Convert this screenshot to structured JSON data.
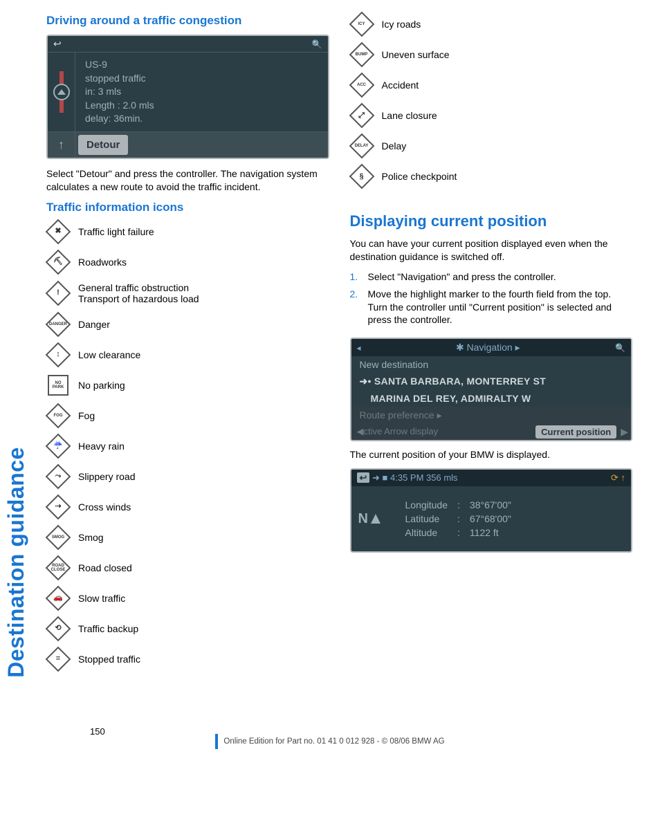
{
  "sideTab": "Destination guidance",
  "left": {
    "heading1": "Driving around a traffic congestion",
    "detour": {
      "road": "US-9",
      "status": "stopped traffic",
      "in": "in: 3 mls",
      "length": "Length : 2.0 mls",
      "delay": "delay: 36min.",
      "button": "Detour"
    },
    "detourText": "Select \"Detour\" and press the controller. The navigation system calculates a new route to avoid the traffic incident.",
    "heading2": "Traffic information icons",
    "icons": [
      {
        "glyph": "✖",
        "shape": "diamond",
        "label": "Traffic light failure"
      },
      {
        "glyph": "⛏",
        "shape": "diamond",
        "label": "Roadworks"
      },
      {
        "glyph": "!",
        "shape": "diamond",
        "label": "General traffic obstruction\nTransport of hazardous load"
      },
      {
        "glyph": "DANGER",
        "shape": "diamond",
        "label": "Danger"
      },
      {
        "glyph": "↕",
        "shape": "diamond",
        "label": "Low clearance"
      },
      {
        "glyph": "NO\nPARK",
        "shape": "square",
        "label": "No parking"
      },
      {
        "glyph": "FOG",
        "shape": "diamond",
        "label": "Fog"
      },
      {
        "glyph": "☔",
        "shape": "diamond",
        "label": "Heavy rain"
      },
      {
        "glyph": "⤳",
        "shape": "diamond",
        "label": "Slippery road"
      },
      {
        "glyph": "⇢",
        "shape": "diamond",
        "label": "Cross winds"
      },
      {
        "glyph": "SMOG",
        "shape": "diamond",
        "label": "Smog"
      },
      {
        "glyph": "ROAD\nCLOSE",
        "shape": "diamond",
        "label": "Road closed"
      },
      {
        "glyph": "🚗",
        "shape": "diamond",
        "label": "Slow traffic"
      },
      {
        "glyph": "⟲",
        "shape": "diamond",
        "label": "Traffic backup"
      },
      {
        "glyph": "≡",
        "shape": "diamond",
        "label": "Stopped traffic"
      }
    ]
  },
  "right": {
    "iconsCont": [
      {
        "glyph": "ICY",
        "shape": "diamond",
        "label": "Icy roads"
      },
      {
        "glyph": "BUMP",
        "shape": "diamond",
        "label": "Uneven surface"
      },
      {
        "glyph": "ACC",
        "shape": "diamond",
        "label": "Accident"
      },
      {
        "glyph": "⤢",
        "shape": "diamond",
        "label": "Lane closure"
      },
      {
        "glyph": "DELAY",
        "shape": "diamond",
        "label": "Delay"
      },
      {
        "glyph": "§",
        "shape": "diamond",
        "label": "Police checkpoint"
      }
    ],
    "heading1": "Displaying current position",
    "intro": "You can have your current position displayed even when the destination guidance is switched off.",
    "steps": [
      "Select \"Navigation\" and press the controller.",
      "Move the highlight marker to the fourth field from the top. Turn the controller until \"Current position\" is selected and press the controller."
    ],
    "navShot": {
      "title": "Navigation",
      "newDest": "New destination",
      "dest1": "➜• SANTA BARBARA, MONTERREY ST",
      "dest2": "MARINA DEL REY, ADMIRALTY W",
      "routePref": "Route preference ▸",
      "bottomLeft": "◀ctive  Arrow display",
      "bottomPill": "Current position"
    },
    "afterNav": "The current position of your BMW is displayed.",
    "posShot": {
      "header": "➜ ■ 4:35 PM  356 mls",
      "compass": "N",
      "rows": [
        [
          "Longitude",
          ":",
          "38°67'00\""
        ],
        [
          "Latitude",
          ":",
          "67°68'00\""
        ],
        [
          "Altitude",
          ":",
          "1122 ft"
        ]
      ]
    }
  },
  "pageNumber": "150",
  "footer": "Online Edition for Part no. 01 41 0 012 928 - © 08/06 BMW AG"
}
